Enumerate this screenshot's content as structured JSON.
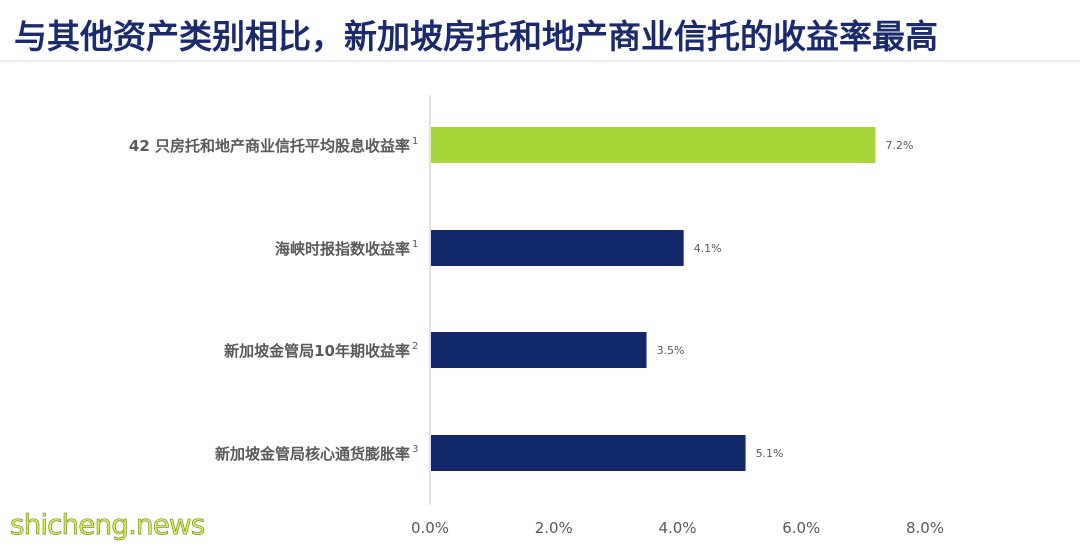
{
  "title": "与其他资产类别相比，新加坡房托和地产商业信托的收益率最高",
  "watermark": "shicheng.news",
  "colors": {
    "highlight": "#a7d63a",
    "primary": "#13286b",
    "axis": "#d9d9d9",
    "label_text": "#595959",
    "value_text": "#595959"
  },
  "chart_data": {
    "type": "bar",
    "orientation": "horizontal",
    "categories": [
      "42 只房托和地产商业信托平均股息收益率",
      "海峡时报指数收益率",
      "新加坡金管局10年期收益率",
      "新加坡金管局核心通货膨胀率"
    ],
    "footnotes": [
      "1",
      "1",
      "2",
      "3"
    ],
    "values": [
      7.2,
      4.1,
      3.5,
      5.1
    ],
    "value_labels": [
      "7.2%",
      "4.1%",
      "3.5%",
      "5.1%"
    ],
    "highlight_index": 0,
    "xlim": [
      0,
      8
    ],
    "xticks": [
      0,
      2,
      4,
      6,
      8
    ],
    "xtick_labels": [
      "0.0%",
      "2.0%",
      "4.0%",
      "6.0%",
      "8.0%"
    ],
    "grid": false
  }
}
